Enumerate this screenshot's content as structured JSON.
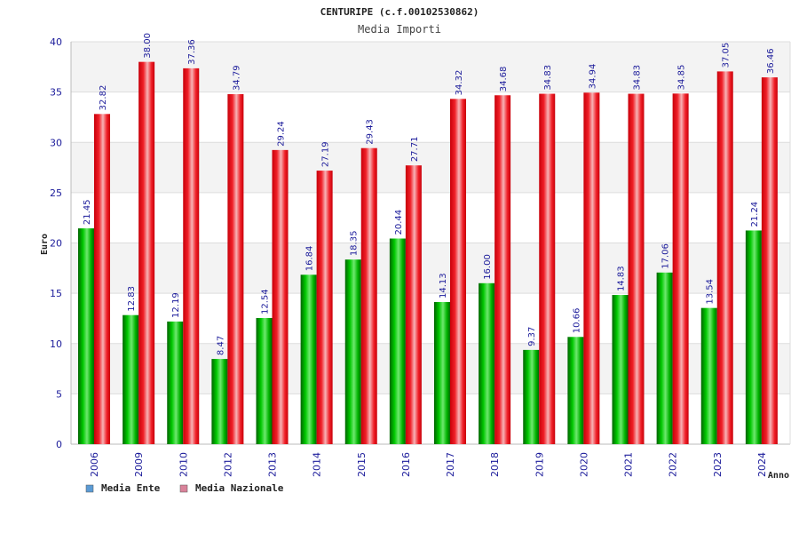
{
  "chart_data": {
    "type": "bar",
    "title": "CENTURIPE (c.f.00102530862)",
    "subtitle": "Media Importi",
    "xlabel": "Anno",
    "ylabel": "Euro",
    "ylim": [
      0,
      40
    ],
    "yticks": [
      0,
      5,
      10,
      15,
      20,
      25,
      30,
      35,
      40
    ],
    "categories": [
      "2006",
      "2009",
      "2010",
      "2012",
      "2013",
      "2014",
      "2015",
      "2016",
      "2017",
      "2018",
      "2019",
      "2020",
      "2021",
      "2022",
      "2023",
      "2024"
    ],
    "series": [
      {
        "name": "Media Ente",
        "color": "#00b000",
        "legend_color": "#5b9bd5",
        "values": [
          21.45,
          12.83,
          12.19,
          8.47,
          12.54,
          16.84,
          18.35,
          20.44,
          14.13,
          16.0,
          9.37,
          10.66,
          14.83,
          17.06,
          13.54,
          21.24
        ],
        "labels": [
          "21.45",
          "12.83",
          "12.19",
          "8.47",
          "12.54",
          "16.84",
          "18.35",
          "20.44",
          "14.13",
          "16.00",
          "9.37",
          "10.66",
          "14.83",
          "17.06",
          "13.54",
          "21.24"
        ]
      },
      {
        "name": "Media Nazionale",
        "color": "#e8141c",
        "legend_color": "#d9829a",
        "values": [
          32.82,
          38.0,
          37.36,
          34.79,
          29.24,
          27.19,
          29.43,
          27.71,
          34.32,
          34.68,
          34.83,
          34.94,
          34.83,
          34.85,
          37.05,
          36.46
        ],
        "labels": [
          "32.82",
          "38.00",
          "37.36",
          "34.79",
          "29.24",
          "27.19",
          "29.43",
          "27.71",
          "34.32",
          "34.68",
          "34.83",
          "34.94",
          "34.83",
          "34.85",
          "37.05",
          "36.46"
        ]
      }
    ],
    "grid": true,
    "legend": "bottom-left"
  }
}
